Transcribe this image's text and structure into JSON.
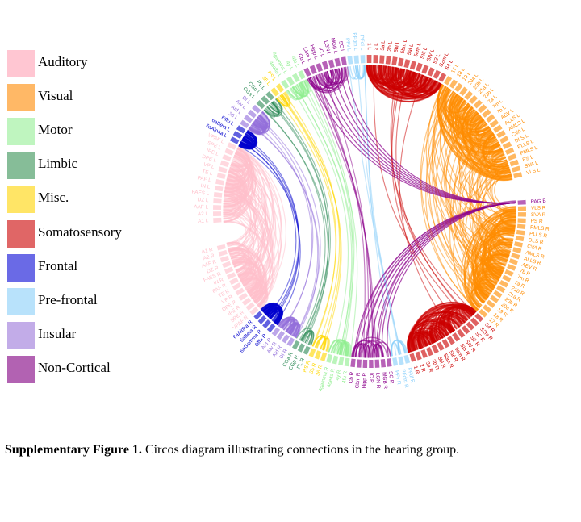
{
  "legend": [
    {
      "name": "Auditory",
      "color": "#ffc0cb",
      "swatch": "#ffc6d2"
    },
    {
      "name": "Visual",
      "color": "#ff8c00",
      "swatch": "#ffb866"
    },
    {
      "name": "Motor",
      "color": "#90ee90",
      "swatch": "#bff5bf"
    },
    {
      "name": "Limbic",
      "color": "#2e8b57",
      "swatch": "#86bd98"
    },
    {
      "name": "Misc.",
      "color": "#ffd700",
      "swatch": "#ffe566"
    },
    {
      "name": "Somatosensory",
      "color": "#cc0000",
      "swatch": "#e06666"
    },
    {
      "name": "Frontal",
      "color": "#0000cd",
      "swatch": "#6a6ae6"
    },
    {
      "name": "Pre-frontal",
      "color": "#87cefa",
      "swatch": "#b8e2fb"
    },
    {
      "name": "Insular",
      "color": "#9370db",
      "swatch": "#c2ace8"
    },
    {
      "name": "Non-Cortical",
      "color": "#8b008b",
      "swatch": "#b262b2"
    }
  ],
  "caption": {
    "bold": "Supplementary Figure 1.",
    "text": " Circos diagram illustrating connections in the hearing group."
  },
  "circos": {
    "right_hemisphere": [
      {
        "label": "PAG B",
        "group": "Non-Cortical"
      },
      {
        "label": "VLS R",
        "group": "Visual"
      },
      {
        "label": "SVA R",
        "group": "Visual"
      },
      {
        "label": "PS R",
        "group": "Visual"
      },
      {
        "label": "PMLS R",
        "group": "Visual"
      },
      {
        "label": "PLLS R",
        "group": "Visual"
      },
      {
        "label": "DLS R",
        "group": "Visual"
      },
      {
        "label": "CVA R",
        "group": "Visual"
      },
      {
        "label": "AMLS R",
        "group": "Visual"
      },
      {
        "label": "ALLS R",
        "group": "Visual"
      },
      {
        "label": "AEV R",
        "group": "Visual"
      },
      {
        "label": "7b R",
        "group": "Visual"
      },
      {
        "label": "7m R",
        "group": "Visual"
      },
      {
        "label": "7a R",
        "group": "Visual"
      },
      {
        "label": "21b R",
        "group": "Visual"
      },
      {
        "label": "21a R",
        "group": "Visual"
      },
      {
        "label": "20b R",
        "group": "Visual"
      },
      {
        "label": "20a R",
        "group": "Visual"
      },
      {
        "label": "19 R",
        "group": "Visual"
      },
      {
        "label": "18 R",
        "group": "Visual"
      },
      {
        "label": "17 R",
        "group": "Visual"
      },
      {
        "label": "S4 R",
        "group": "Somatosensory"
      },
      {
        "label": "S2m R",
        "group": "Somatosensory"
      },
      {
        "label": "S2 R",
        "group": "Somatosensory"
      },
      {
        "label": "S2 R",
        "group": "Somatosensory"
      },
      {
        "label": "SIV R",
        "group": "Somatosensory"
      },
      {
        "label": "SIII R",
        "group": "Somatosensory"
      },
      {
        "label": "5am R",
        "group": "Somatosensory"
      },
      {
        "label": "5al R",
        "group": "Somatosensory"
      },
      {
        "label": "5bm R",
        "group": "Somatosensory"
      },
      {
        "label": "5bl R",
        "group": "Somatosensory"
      },
      {
        "label": "3b R",
        "group": "Somatosensory"
      },
      {
        "label": "3a R",
        "group": "Somatosensory"
      },
      {
        "label": "2 R",
        "group": "Somatosensory"
      },
      {
        "label": "1 R",
        "group": "Somatosensory"
      },
      {
        "label": "PFdl R",
        "group": "Pre-frontal"
      },
      {
        "label": "PFdm R",
        "group": "Pre-frontal"
      },
      {
        "label": "PFv R",
        "group": "Pre-frontal"
      },
      {
        "label": "SC R",
        "group": "Non-Cortical"
      },
      {
        "label": "MGB R",
        "group": "Non-Cortical"
      },
      {
        "label": "LGN R",
        "group": "Non-Cortical"
      },
      {
        "label": "IC R",
        "group": "Non-Cortical"
      },
      {
        "label": "Hipp R",
        "group": "Non-Cortical"
      },
      {
        "label": "Cbm R",
        "group": "Non-Cortical"
      },
      {
        "label": "Cb R",
        "group": "Non-Cortical"
      },
      {
        "label": "4fu R",
        "group": "Motor"
      },
      {
        "label": "4y R",
        "group": "Motor"
      },
      {
        "label": "4delta R",
        "group": "Motor"
      },
      {
        "label": "4gamma R",
        "group": "Motor"
      },
      {
        "label": "36 R",
        "group": "Misc."
      },
      {
        "label": "35 R",
        "group": "Misc."
      },
      {
        "label": "PS R",
        "group": "Misc."
      },
      {
        "label": "PL R",
        "group": "Limbic"
      },
      {
        "label": "CGp R",
        "group": "Limbic"
      },
      {
        "label": "CGa R",
        "group": "Limbic"
      },
      {
        "label": "DI R",
        "group": "Insular"
      },
      {
        "label": "AId R",
        "group": "Insular"
      },
      {
        "label": "AIv R",
        "group": "Insular"
      },
      {
        "label": "AId R",
        "group": "Insular"
      },
      {
        "label": "6iffu R",
        "group": "Frontal"
      },
      {
        "label": "6aGamma R",
        "group": "Frontal"
      },
      {
        "label": "6aBeta R",
        "group": "Frontal"
      },
      {
        "label": "6aAlpha R",
        "group": "Frontal"
      },
      {
        "label": "VPAF R",
        "group": "Auditory"
      },
      {
        "label": "SPE R",
        "group": "Auditory"
      },
      {
        "label": "IPE R",
        "group": "Auditory"
      },
      {
        "label": "DPE R",
        "group": "Auditory"
      },
      {
        "label": "VP R",
        "group": "Auditory"
      },
      {
        "label": "TE R",
        "group": "Auditory"
      },
      {
        "label": "PAF R",
        "group": "Auditory"
      },
      {
        "label": "IN R",
        "group": "Auditory"
      },
      {
        "label": "FAES R",
        "group": "Auditory"
      },
      {
        "label": "DZ R",
        "group": "Auditory"
      },
      {
        "label": "AAF R",
        "group": "Auditory"
      },
      {
        "label": "A2 R",
        "group": "Auditory"
      },
      {
        "label": "A1 R",
        "group": "Auditory"
      }
    ],
    "left_hemisphere": [
      {
        "label": "A1 L",
        "group": "Auditory"
      },
      {
        "label": "A2 L",
        "group": "Auditory"
      },
      {
        "label": "AAF L",
        "group": "Auditory"
      },
      {
        "label": "DZ L",
        "group": "Auditory"
      },
      {
        "label": "FAES L",
        "group": "Auditory"
      },
      {
        "label": "IN L",
        "group": "Auditory"
      },
      {
        "label": "PAF L",
        "group": "Auditory"
      },
      {
        "label": "TE L",
        "group": "Auditory"
      },
      {
        "label": "VP L",
        "group": "Auditory"
      },
      {
        "label": "DPE L",
        "group": "Auditory"
      },
      {
        "label": "IPE L",
        "group": "Auditory"
      },
      {
        "label": "SPE L",
        "group": "Auditory"
      },
      {
        "label": "VPAF L",
        "group": "Auditory"
      },
      {
        "label": "6aAlpha L",
        "group": "Frontal"
      },
      {
        "label": "6aBeta L",
        "group": "Frontal"
      },
      {
        "label": "6iffu L",
        "group": "Frontal"
      },
      {
        "label": "36 L",
        "group": "Insular"
      },
      {
        "label": "AId L",
        "group": "Insular"
      },
      {
        "label": "AIv L",
        "group": "Insular"
      },
      {
        "label": "DI L",
        "group": "Insular"
      },
      {
        "label": "CGa L",
        "group": "Limbic"
      },
      {
        "label": "CGp L",
        "group": "Limbic"
      },
      {
        "label": "PL L",
        "group": "Limbic"
      },
      {
        "label": "35 L",
        "group": "Misc."
      },
      {
        "label": "PS L",
        "group": "Misc."
      },
      {
        "label": "4delta L",
        "group": "Motor"
      },
      {
        "label": "4gamma L",
        "group": "Motor"
      },
      {
        "label": "4y L",
        "group": "Motor"
      },
      {
        "label": "4fu L",
        "group": "Motor"
      },
      {
        "label": "Cb L",
        "group": "Non-Cortical"
      },
      {
        "label": "Cbm L",
        "group": "Non-Cortical"
      },
      {
        "label": "Hipp L",
        "group": "Non-Cortical"
      },
      {
        "label": "IC L",
        "group": "Non-Cortical"
      },
      {
        "label": "LGN L",
        "group": "Non-Cortical"
      },
      {
        "label": "MGB L",
        "group": "Non-Cortical"
      },
      {
        "label": "SC L",
        "group": "Non-Cortical"
      },
      {
        "label": "PFv L",
        "group": "Pre-frontal"
      },
      {
        "label": "PFdm L",
        "group": "Pre-frontal"
      },
      {
        "label": "PFdl L",
        "group": "Pre-frontal"
      },
      {
        "label": "1 L",
        "group": "Somatosensory"
      },
      {
        "label": "2 L",
        "group": "Somatosensory"
      },
      {
        "label": "3a L",
        "group": "Somatosensory"
      },
      {
        "label": "3b L",
        "group": "Somatosensory"
      },
      {
        "label": "5bl L",
        "group": "Somatosensory"
      },
      {
        "label": "5bm L",
        "group": "Somatosensory"
      },
      {
        "label": "5al L",
        "group": "Somatosensory"
      },
      {
        "label": "5am L",
        "group": "Somatosensory"
      },
      {
        "label": "SIII L",
        "group": "Somatosensory"
      },
      {
        "label": "SIV L",
        "group": "Somatosensory"
      },
      {
        "label": "S2 L",
        "group": "Somatosensory"
      },
      {
        "label": "S2m L",
        "group": "Somatosensory"
      },
      {
        "label": "S4 L",
        "group": "Somatosensory"
      },
      {
        "label": "17 L",
        "group": "Visual"
      },
      {
        "label": "18 L",
        "group": "Visual"
      },
      {
        "label": "19 L",
        "group": "Visual"
      },
      {
        "label": "20a L",
        "group": "Visual"
      },
      {
        "label": "20b L",
        "group": "Visual"
      },
      {
        "label": "21a L",
        "group": "Visual"
      },
      {
        "label": "21b L",
        "group": "Visual"
      },
      {
        "label": "7a L",
        "group": "Visual"
      },
      {
        "label": "7m L",
        "group": "Visual"
      },
      {
        "label": "7b L",
        "group": "Visual"
      },
      {
        "label": "AEV L",
        "group": "Visual"
      },
      {
        "label": "ALLS L",
        "group": "Visual"
      },
      {
        "label": "AMLS L",
        "group": "Visual"
      },
      {
        "label": "CVA L",
        "group": "Visual"
      },
      {
        "label": "DLS L",
        "group": "Visual"
      },
      {
        "label": "PLLS L",
        "group": "Visual"
      },
      {
        "label": "PMLS L",
        "group": "Visual"
      },
      {
        "label": "PS L",
        "group": "Visual"
      },
      {
        "label": "SVA L",
        "group": "Visual"
      },
      {
        "label": "VLS L",
        "group": "Visual"
      }
    ]
  }
}
